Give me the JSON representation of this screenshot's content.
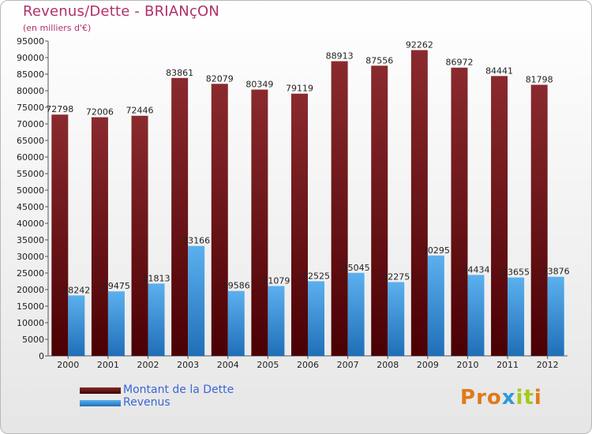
{
  "title": "Revenus/Dette - BRIANçON",
  "subtitle": "(en milliers d'€)",
  "colors": {
    "dette": "#7a1f22",
    "revenus": "#3d95dc",
    "title": "#b0306a",
    "legend_text": "#3a66d8"
  },
  "legend": [
    {
      "label": "Montant de la Dette",
      "color": "#5a0a0c"
    },
    {
      "label": "Revenus",
      "color": "#3d95dc"
    }
  ],
  "logo": {
    "letters": [
      "P",
      "r",
      "o",
      "x",
      "i",
      "t",
      "i"
    ],
    "colors": [
      "#e07a18",
      "#e07a18",
      "#e07a18",
      "#2f9ad8",
      "#a6c820",
      "#a6c820",
      "#e07a18"
    ]
  },
  "chart_data": {
    "type": "bar",
    "categories": [
      "2000",
      "2001",
      "2002",
      "2003",
      "2004",
      "2005",
      "2006",
      "2007",
      "2008",
      "2009",
      "2010",
      "2011",
      "2012"
    ],
    "series": [
      {
        "name": "Montant de la Dette",
        "values": [
          72798,
          72006,
          72446,
          83861,
          82079,
          80349,
          79119,
          88913,
          87556,
          92262,
          86972,
          84441,
          81798
        ]
      },
      {
        "name": "Revenus",
        "values": [
          18242,
          19475,
          21813,
          33166,
          19586,
          21079,
          22525,
          25045,
          22275,
          30295,
          24434,
          23655,
          23876
        ]
      }
    ],
    "ylim": [
      0,
      95000
    ],
    "ytick_step": 5000,
    "ytick_labels": [
      "0",
      "5000",
      "10000",
      "15000",
      "20000",
      "25000",
      "30000",
      "35000",
      "40000",
      "45000",
      "50000",
      "55000",
      "60000",
      "65000",
      "70000",
      "75000",
      "80000",
      "85000",
      "90000",
      "95000"
    ],
    "grid": false,
    "legend_position": "bottom-left"
  }
}
